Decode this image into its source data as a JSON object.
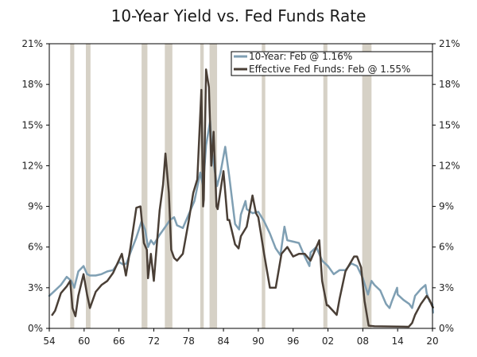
{
  "chart_data": {
    "type": "line",
    "title": "10-Year Yield vs. Fed Funds Rate",
    "xlabel": "",
    "ylabel": "",
    "xlim": [
      1954,
      2020
    ],
    "ylim": [
      0,
      21
    ],
    "x_ticks": [
      {
        "value": 1954,
        "label": "54"
      },
      {
        "value": 1960,
        "label": "60"
      },
      {
        "value": 1966,
        "label": "66"
      },
      {
        "value": 1972,
        "label": "72"
      },
      {
        "value": 1978,
        "label": "78"
      },
      {
        "value": 1984,
        "label": "84"
      },
      {
        "value": 1990,
        "label": "90"
      },
      {
        "value": 1996,
        "label": "96"
      },
      {
        "value": 2002,
        "label": "02"
      },
      {
        "value": 2008,
        "label": "08"
      },
      {
        "value": 2014,
        "label": "14"
      },
      {
        "value": 2020,
        "label": "20"
      }
    ],
    "y_ticks": [
      {
        "value": 0,
        "label": "0%"
      },
      {
        "value": 3,
        "label": "3%"
      },
      {
        "value": 6,
        "label": "6%"
      },
      {
        "value": 9,
        "label": "9%"
      },
      {
        "value": 12,
        "label": "12%"
      },
      {
        "value": 15,
        "label": "15%"
      },
      {
        "value": 18,
        "label": "18%"
      },
      {
        "value": 21,
        "label": "21%"
      }
    ],
    "recessions": [
      [
        1957.6,
        1958.3
      ],
      [
        1960.3,
        1961.1
      ],
      [
        1969.9,
        1970.9
      ],
      [
        1973.9,
        1975.2
      ],
      [
        1980.0,
        1980.6
      ],
      [
        1981.6,
        1982.9
      ],
      [
        1990.6,
        1991.2
      ],
      [
        2001.2,
        2001.9
      ],
      [
        2007.9,
        2009.5
      ]
    ],
    "colors": {
      "ten_year": "#7f9fb3",
      "fed_funds": "#4a3f36",
      "recession": "#d6d1c6",
      "axis": "#000000"
    },
    "legend": {
      "placement": "top-right",
      "entries": [
        "10-Year: Feb @ 1.16%",
        "Effective Fed Funds: Feb @ 1.55%"
      ]
    },
    "series": [
      {
        "name": "10-Year: Feb @ 1.16%",
        "x": [
          1954,
          1955,
          1956,
          1957,
          1957.8,
          1958.3,
          1959,
          1959.9,
          1960.5,
          1961,
          1962,
          1963,
          1964,
          1965,
          1966,
          1966.8,
          1967.3,
          1968,
          1969,
          1969.9,
          1970.5,
          1971,
          1971.5,
          1972,
          1973,
          1974,
          1974.8,
          1975.5,
          1976,
          1977,
          1978,
          1979,
          1980,
          1980.5,
          1981,
          1981.7,
          1982,
          1982.9,
          1983.5,
          1984.3,
          1985,
          1986,
          1986.7,
          1987,
          1987.8,
          1988,
          1989,
          1990,
          1991,
          1992,
          1993,
          1993.8,
          1994.5,
          1995,
          1996,
          1997,
          1998,
          1998.8,
          1999,
          2000,
          2001,
          2002,
          2003,
          2004,
          2005,
          2006,
          2007,
          2008,
          2008.9,
          2009.5,
          2010,
          2011,
          2012,
          2012.6,
          2013,
          2013.9,
          2014,
          2015,
          2016,
          2016.5,
          2017,
          2018,
          2018.8,
          2019,
          2019.5,
          2020,
          2020.1
        ],
        "values": [
          2.4,
          2.8,
          3.2,
          3.8,
          3.5,
          3.0,
          4.2,
          4.6,
          4.0,
          3.9,
          3.9,
          4.0,
          4.2,
          4.3,
          4.9,
          4.7,
          4.8,
          5.6,
          6.7,
          7.9,
          7.3,
          6.0,
          6.5,
          6.2,
          6.9,
          7.5,
          8.0,
          8.2,
          7.6,
          7.4,
          8.4,
          9.4,
          11.5,
          10.5,
          13.5,
          15.3,
          13.0,
          10.5,
          11.5,
          13.4,
          11.2,
          7.7,
          7.3,
          8.4,
          9.4,
          8.8,
          8.5,
          8.6,
          7.9,
          7.0,
          5.9,
          5.4,
          7.5,
          6.5,
          6.4,
          6.3,
          5.3,
          4.6,
          5.6,
          6.0,
          5.0,
          4.6,
          4.0,
          4.3,
          4.3,
          4.8,
          4.6,
          3.7,
          2.5,
          3.5,
          3.2,
          2.8,
          1.8,
          1.5,
          2.0,
          3.0,
          2.5,
          2.1,
          1.8,
          1.5,
          2.4,
          2.9,
          3.2,
          2.6,
          2.0,
          1.76,
          1.16
        ]
      },
      {
        "name": "Effective Fed Funds: Feb @ 1.55%",
        "x": [
          1954.5,
          1955,
          1956,
          1957,
          1957.6,
          1958.0,
          1958.5,
          1959,
          1959.9,
          1960.5,
          1961,
          1962,
          1963,
          1964,
          1965,
          1966.5,
          1967.2,
          1968,
          1969,
          1969.7,
          1970.3,
          1970.8,
          1971,
          1971.5,
          1972,
          1973,
          1973.6,
          1974,
          1974.6,
          1975,
          1975.5,
          1976,
          1977,
          1978,
          1978.8,
          1979.5,
          1980.2,
          1980.5,
          1980.6,
          1981,
          1981.5,
          1981.9,
          1982.3,
          1982.8,
          1983,
          1984,
          1984.7,
          1985,
          1986,
          1986.6,
          1987,
          1988,
          1989,
          1989.6,
          1990,
          1991,
          1992,
          1993,
          1994,
          1995,
          1996,
          1997,
          1998,
          1999,
          2000.5,
          2001,
          2001.8,
          2002,
          2003.5,
          2004,
          2005,
          2006.5,
          2007,
          2007.7,
          2008.3,
          2009,
          2010,
          2015.9,
          2016.5,
          2017,
          2018,
          2019,
          2019.5,
          2020,
          2020.1
        ],
        "values": [
          1.0,
          1.3,
          2.6,
          3.1,
          3.5,
          1.5,
          0.9,
          2.4,
          4.0,
          2.5,
          1.5,
          2.7,
          3.2,
          3.5,
          4.1,
          5.5,
          3.9,
          6.0,
          8.9,
          9.0,
          6.3,
          5.8,
          3.7,
          5.5,
          3.5,
          8.7,
          10.6,
          12.9,
          10.0,
          5.8,
          5.2,
          5.0,
          5.5,
          7.9,
          10.0,
          11.0,
          17.6,
          9.0,
          9.5,
          19.1,
          17.8,
          12.0,
          14.5,
          9.0,
          8.8,
          11.6,
          8.0,
          8.0,
          6.2,
          5.9,
          6.8,
          7.5,
          9.8,
          8.5,
          8.2,
          5.5,
          3.0,
          3.0,
          5.5,
          6.0,
          5.3,
          5.5,
          5.5,
          5.0,
          6.5,
          3.5,
          1.7,
          1.7,
          1.0,
          2.2,
          4.2,
          5.3,
          5.3,
          4.5,
          2.0,
          0.2,
          0.15,
          0.12,
          0.4,
          1.0,
          1.8,
          2.4,
          2.1,
          1.6,
          1.55
        ]
      }
    ]
  }
}
